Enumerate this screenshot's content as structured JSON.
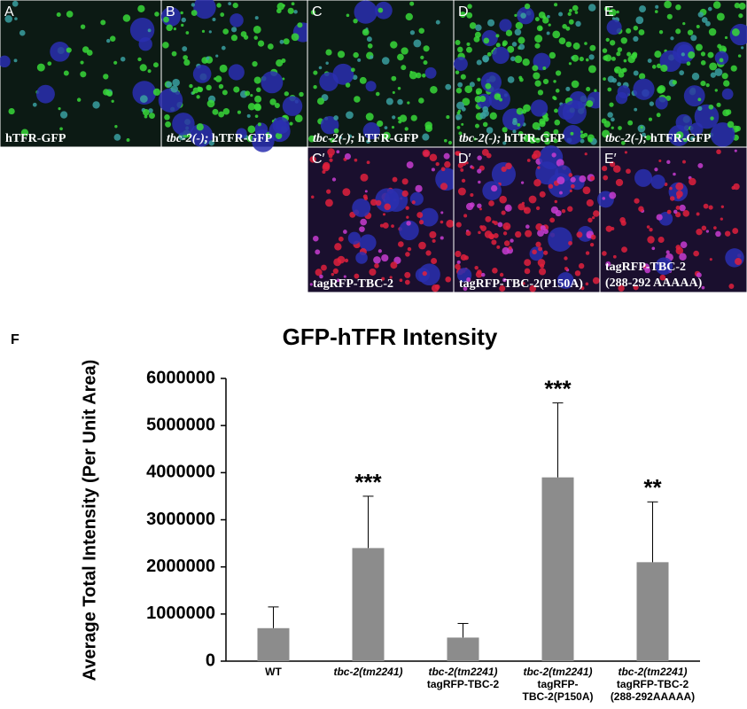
{
  "panels": [
    {
      "label": "A",
      "caption": "hTFR-GFP"
    },
    {
      "label": "B",
      "caption_italic": "tbc-2(-);",
      "caption": "hTFR-GFP"
    },
    {
      "label": "C",
      "caption_italic": "tbc-2(-);",
      "caption": "hTFR-GFP"
    },
    {
      "label": "D",
      "caption_italic": "tbc-2(-);",
      "caption": "hTFR-GFP"
    },
    {
      "label": "E",
      "caption_italic": "tbc-2(-);",
      "caption": "hTFR-GFP"
    },
    {
      "label": "C′",
      "caption": "tagRFP-TBC-2"
    },
    {
      "label": "D′",
      "caption": "tagRFP-TBC-2(P150A)"
    },
    {
      "label": "E′",
      "caption": "tagRFP-TBC-2",
      "caption2": "(288-292 AAAAA)"
    }
  ],
  "chart_data": {
    "type": "bar",
    "panel_label": "F",
    "title": "GFP-hTFR Intensity",
    "y_label": "Average Total Intensity (Per Unit Area)",
    "categories": [
      [
        "WT"
      ],
      [
        "tbc-2(tm2241)"
      ],
      [
        "tbc-2(tm2241)",
        "tagRFP-TBC-2"
      ],
      [
        "tbc-2(tm2241)",
        "tagRFP-",
        "TBC-2(P150A)"
      ],
      [
        "tbc-2(tm2241)",
        "tagRFP-TBC-2",
        "(288-292AAAAA)"
      ]
    ],
    "values": [
      700000,
      2400000,
      500000,
      3900000,
      2100000
    ],
    "errors": [
      450000,
      1100000,
      300000,
      1580000,
      1280000
    ],
    "annotations": [
      null,
      "***",
      null,
      "***",
      "**"
    ],
    "color": "#8c8c8c",
    "ylim": [
      0,
      6000000
    ],
    "yticks": [
      0,
      1000000,
      2000000,
      3000000,
      4000000,
      5000000,
      6000000
    ]
  }
}
